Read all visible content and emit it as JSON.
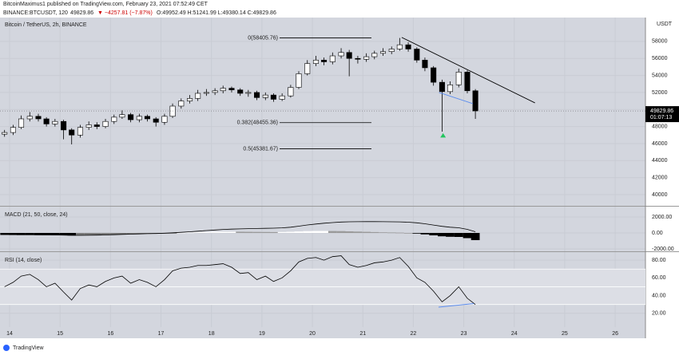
{
  "header": {
    "line1": "BitcoinMaximus1 published on TradingView.com, February 23, 2021 07:52:49 CET",
    "symbol": "BINANCE:BTCUSDT, 120",
    "price": "49829.86",
    "change": "▼ −4257.81 (−7.87%)",
    "ohlc": "O:49952.49 H:51241.99 L:49380.14 C:49829.86"
  },
  "footer": {
    "brand": "TradingView"
  },
  "chart_data": [
    {
      "type": "candlestick",
      "title": "Bitcoin / TetherUS, 2h, BINANCE",
      "unit": "USDT",
      "x": [
        13.9,
        14.07,
        14.23,
        14.4,
        14.57,
        14.73,
        14.9,
        15.07,
        15.23,
        15.4,
        15.57,
        15.73,
        15.9,
        16.07,
        16.23,
        16.4,
        16.57,
        16.73,
        16.9,
        17.07,
        17.23,
        17.4,
        17.57,
        17.73,
        17.9,
        18.07,
        18.23,
        18.4,
        18.57,
        18.73,
        18.9,
        19.07,
        19.23,
        19.4,
        19.57,
        19.73,
        19.9,
        20.07,
        20.23,
        20.4,
        20.57,
        20.73,
        20.9,
        21.07,
        21.23,
        21.4,
        21.57,
        21.73,
        21.9,
        22.07,
        22.23,
        22.4,
        22.57,
        22.73,
        22.9,
        23.07,
        23.23
      ],
      "open": [
        47100,
        47300,
        47900,
        48900,
        49200,
        48900,
        48300,
        48600,
        47600,
        47000,
        47900,
        48200,
        48000,
        48600,
        49100,
        49400,
        48800,
        49200,
        48900,
        48500,
        49200,
        50400,
        51000,
        51300,
        51900,
        52000,
        52200,
        52500,
        52300,
        51900,
        52000,
        51400,
        51700,
        51200,
        51600,
        52600,
        54200,
        55400,
        55800,
        55600,
        56300,
        56700,
        56000,
        55900,
        56200,
        56600,
        56800,
        57100,
        57600,
        57100,
        55800,
        54900,
        53200,
        52100,
        52900,
        54400,
        52200
      ],
      "high": [
        47600,
        48200,
        49300,
        49700,
        49500,
        49100,
        48900,
        48800,
        47800,
        48200,
        48600,
        48500,
        48900,
        49400,
        49900,
        49600,
        49500,
        49400,
        49100,
        49500,
        50700,
        51300,
        51700,
        52300,
        52400,
        52500,
        52800,
        52700,
        52500,
        52300,
        52200,
        52000,
        51900,
        51900,
        52900,
        54500,
        55800,
        56300,
        56100,
        56700,
        57200,
        57000,
        56300,
        56600,
        56900,
        57200,
        57400,
        58400,
        57900,
        57300,
        56100,
        55100,
        53500,
        53300,
        54800,
        54600,
        52400
      ],
      "low": [
        46800,
        47000,
        47700,
        48600,
        48600,
        48000,
        48000,
        46500,
        45900,
        46700,
        47600,
        47700,
        47800,
        48300,
        48900,
        48500,
        48500,
        48600,
        48000,
        48200,
        49000,
        50100,
        50700,
        51000,
        51600,
        51700,
        51900,
        52000,
        51600,
        51500,
        51100,
        51100,
        50900,
        51000,
        51400,
        52400,
        54000,
        55100,
        55200,
        55300,
        56000,
        53900,
        55400,
        55600,
        55900,
        56300,
        56500,
        56900,
        56800,
        55500,
        54500,
        52800,
        47400,
        51800,
        52600,
        51900,
        48900
      ],
      "close": [
        47300,
        47900,
        48900,
        49200,
        48900,
        48300,
        48600,
        47600,
        47000,
        47900,
        48200,
        48000,
        48600,
        49100,
        49400,
        48800,
        49200,
        48900,
        48500,
        49200,
        50400,
        51000,
        51300,
        51900,
        52000,
        52200,
        52500,
        52300,
        51900,
        52000,
        51400,
        51700,
        51200,
        51600,
        52600,
        54200,
        55400,
        55800,
        55600,
        56300,
        56700,
        56000,
        55900,
        56200,
        56600,
        56800,
        57100,
        57600,
        57100,
        55800,
        54900,
        53200,
        52100,
        52900,
        54400,
        52200,
        49830
      ],
      "xlim": [
        13.81,
        26.6
      ],
      "xticks": [
        14,
        15,
        16,
        17,
        18,
        19,
        20,
        21,
        22,
        23,
        24,
        25,
        26
      ],
      "ylim": [
        38780,
        60800
      ],
      "yticks": [
        40000,
        42000,
        44000,
        46000,
        48000,
        50000,
        52000,
        54000,
        56000,
        58000
      ],
      "last_price": 49829.86,
      "countdown": "01:07:13",
      "fib_range": [
        19.35,
        21.17
      ],
      "fib_levels": [
        {
          "value": 58405.76,
          "label": "0(58405.76)"
        },
        {
          "value": 48455.36,
          "label": "0.382(48455.36)"
        },
        {
          "value": 45381.67,
          "label": "0.5(45381.67)"
        }
      ],
      "trendlines": [
        {
          "color": "#000000",
          "points": [
            [
              21.77,
              58470
            ],
            [
              24.41,
              50780
            ]
          ]
        },
        {
          "color": "#5b8def",
          "points": [
            [
              22.51,
              52000
            ],
            [
              23.18,
              50690
            ]
          ]
        }
      ],
      "arrow": {
        "x": 22.59,
        "y": 46940,
        "color": "#22c55e"
      },
      "colors": {
        "up": "#ffffff",
        "down": "#000000",
        "background": "#d3d6de"
      }
    },
    {
      "type": "macd",
      "title": "MACD (21, 50, close, 24)",
      "series": [
        {
          "name": "histogram",
          "values": [
            -250,
            -260,
            -270,
            -270,
            -280,
            -280,
            -290,
            -300,
            -320,
            -300,
            -280,
            -260,
            -240,
            -210,
            -180,
            -150,
            -130,
            -110,
            -90,
            -60,
            -20,
            20,
            60,
            100,
            130,
            150,
            160,
            160,
            150,
            140,
            130,
            120,
            110,
            120,
            150,
            190,
            230,
            250,
            250,
            240,
            230,
            200,
            170,
            140,
            110,
            80,
            60,
            40,
            0,
            -80,
            -180,
            -300,
            -420,
            -480,
            -500,
            -650,
            -900
          ]
        },
        {
          "name": "macd",
          "color": "#000000",
          "values": [
            -150,
            -170,
            -190,
            -200,
            -220,
            -240,
            -250,
            -270,
            -300,
            -300,
            -290,
            -270,
            -250,
            -220,
            -180,
            -150,
            -120,
            -90,
            -70,
            -30,
            20,
            80,
            150,
            220,
            300,
            370,
            440,
            480,
            510,
            540,
            560,
            580,
            600,
            640,
            720,
            850,
            1000,
            1120,
            1220,
            1300,
            1370,
            1400,
            1410,
            1420,
            1420,
            1410,
            1400,
            1390,
            1350,
            1270,
            1150,
            990,
            830,
            720,
            650,
            450,
            150
          ]
        }
      ],
      "ylim": [
        -2300,
        3200
      ],
      "yticks": [
        {
          "value": 2000,
          "label": "2000.00"
        },
        {
          "value": 0,
          "label": "0.00"
        },
        {
          "value": -2000,
          "label": "-2000.00"
        }
      ]
    },
    {
      "type": "rsi",
      "title": "RSI (14, close)",
      "series": [
        {
          "name": "RSI",
          "color": "#000000",
          "values": [
            50,
            55,
            62,
            64,
            58,
            50,
            54,
            44,
            35,
            48,
            52,
            50,
            56,
            60,
            62,
            54,
            58,
            55,
            50,
            58,
            68,
            71,
            72,
            74,
            74,
            75,
            76,
            72,
            65,
            66,
            58,
            62,
            56,
            60,
            68,
            78,
            82,
            83,
            80,
            84,
            85,
            75,
            72,
            74,
            77,
            78,
            80,
            83,
            73,
            60,
            55,
            45,
            33,
            40,
            50,
            37,
            30
          ]
        }
      ],
      "band": [
        30,
        70
      ],
      "midline": 50,
      "divergence": {
        "color": "#5b8def",
        "points": [
          [
            22.5,
            27
          ],
          [
            23.2,
            31
          ]
        ]
      },
      "ylim": [
        4.5,
        88.2
      ],
      "yticks": [
        {
          "value": 80,
          "label": "80.00"
        },
        {
          "value": 60,
          "label": "60.00"
        },
        {
          "value": 40,
          "label": "40.00"
        },
        {
          "value": 20,
          "label": "20.00"
        }
      ]
    }
  ]
}
